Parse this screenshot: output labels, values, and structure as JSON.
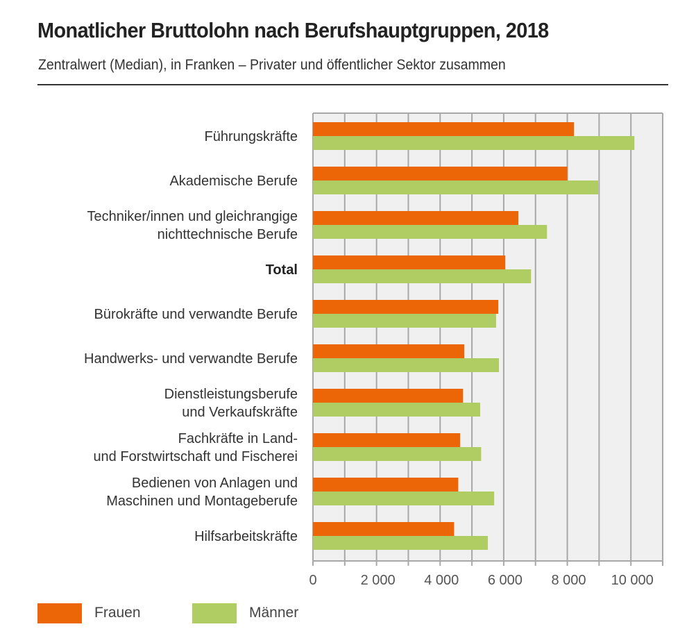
{
  "header": {
    "title": "Monatlicher Bruttolohn nach Berufshauptgruppen, 2018",
    "subtitle": "Zentralwert (Median), in Franken – Privater und öffentlicher Sektor zusammen"
  },
  "colors": {
    "frauen": "#EC6608",
    "maenner": "#AFCD62",
    "plot_bg": "#F0F0F0",
    "grid": "#A8A8A8"
  },
  "chart_data": {
    "type": "bar",
    "orientation": "horizontal",
    "title": "Monatlicher Bruttolohn nach Berufshauptgruppen, 2018",
    "subtitle": "Zentralwert (Median), in Franken – Privater und öffentlicher Sektor zusammen",
    "xlabel": "",
    "ylabel": "",
    "xlim": [
      0,
      11000
    ],
    "xticks": [
      0,
      2000,
      4000,
      6000,
      8000,
      10000
    ],
    "xtick_labels": [
      "0",
      "2 000",
      "4 000",
      "6 000",
      "8 000",
      "10 000"
    ],
    "grid_step": 1000,
    "grid": true,
    "legend_position": "bottom-left",
    "categories": [
      {
        "lines": [
          "Führungskräfte"
        ],
        "bold": false
      },
      {
        "lines": [
          "Akademische Berufe"
        ],
        "bold": false
      },
      {
        "lines": [
          "Techniker/innen und gleichrangige",
          "nichttechnische Berufe"
        ],
        "bold": false
      },
      {
        "lines": [
          "Total"
        ],
        "bold": true
      },
      {
        "lines": [
          "Bürokräfte und verwandte Berufe"
        ],
        "bold": false
      },
      {
        "lines": [
          "Handwerks- und verwandte Berufe"
        ],
        "bold": false
      },
      {
        "lines": [
          "Dienstleistungsberufe",
          "und Verkaufskräfte"
        ],
        "bold": false
      },
      {
        "lines": [
          "Fachkräfte in Land-",
          "und Forstwirtschaft und Fischerei"
        ],
        "bold": false
      },
      {
        "lines": [
          "Bedienen von Anlagen und",
          "Maschinen und Montageberufe"
        ],
        "bold": false
      },
      {
        "lines": [
          "Hilfsarbeitskräfte"
        ],
        "bold": false
      }
    ],
    "series": [
      {
        "name": "Frauen",
        "key": "frauen",
        "values": [
          8210,
          8000,
          6460,
          6050,
          5830,
          4760,
          4720,
          4630,
          4570,
          4440
        ]
      },
      {
        "name": "Männer",
        "key": "maenner",
        "values": [
          10110,
          8970,
          7360,
          6860,
          5760,
          5850,
          5260,
          5290,
          5700,
          5500
        ]
      }
    ]
  },
  "legend": {
    "items": [
      {
        "label": "Frauen",
        "key": "frauen"
      },
      {
        "label": "Männer",
        "key": "maenner"
      }
    ]
  }
}
